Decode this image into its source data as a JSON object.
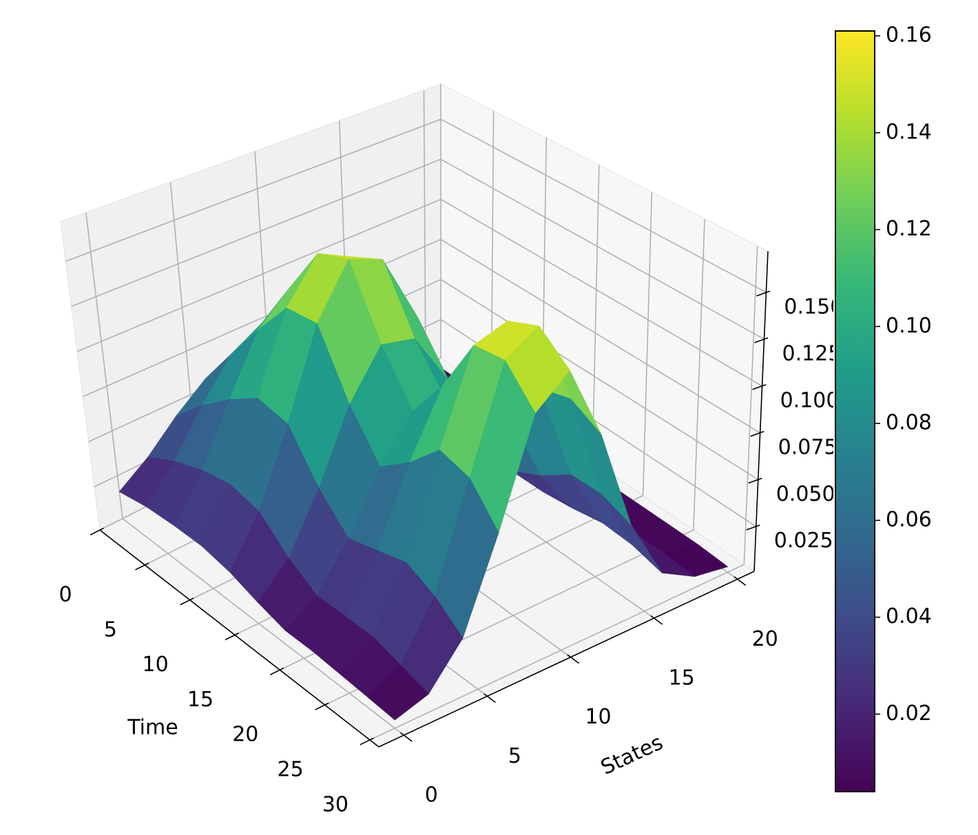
{
  "chart_data": {
    "type": "surface",
    "xlabel": "Time",
    "ylabel": "States",
    "colormap": "viridis",
    "x": [
      0,
      3,
      6,
      9,
      12,
      15,
      18,
      21,
      24,
      27,
      30
    ],
    "y": [
      0,
      2,
      4,
      6,
      8,
      10,
      12,
      14,
      16,
      18,
      20
    ],
    "z": [
      [
        0.016,
        0.027,
        0.042,
        0.055,
        0.06,
        0.055,
        0.042,
        0.027,
        0.016,
        0.009,
        0.006
      ],
      [
        0.019,
        0.036,
        0.059,
        0.08,
        0.09,
        0.083,
        0.062,
        0.039,
        0.021,
        0.011,
        0.006
      ],
      [
        0.02,
        0.042,
        0.073,
        0.104,
        0.12,
        0.111,
        0.083,
        0.05,
        0.026,
        0.012,
        0.006
      ],
      [
        0.02,
        0.045,
        0.084,
        0.126,
        0.149,
        0.14,
        0.103,
        0.061,
        0.03,
        0.013,
        0.006
      ],
      [
        0.017,
        0.041,
        0.08,
        0.127,
        0.155,
        0.148,
        0.109,
        0.063,
        0.029,
        0.012,
        0.006
      ],
      [
        0.012,
        0.027,
        0.056,
        0.093,
        0.118,
        0.114,
        0.084,
        0.047,
        0.022,
        0.009,
        0.005
      ],
      [
        0.008,
        0.018,
        0.04,
        0.07,
        0.092,
        0.091,
        0.067,
        0.037,
        0.017,
        0.008,
        0.005
      ],
      [
        0.008,
        0.018,
        0.044,
        0.082,
        0.115,
        0.116,
        0.085,
        0.045,
        0.019,
        0.008,
        0.005
      ],
      [
        0.007,
        0.018,
        0.048,
        0.098,
        0.145,
        0.151,
        0.109,
        0.056,
        0.022,
        0.008,
        0.005
      ],
      [
        0.006,
        0.014,
        0.041,
        0.093,
        0.146,
        0.157,
        0.113,
        0.056,
        0.021,
        0.008,
        0.005
      ],
      [
        0.005,
        0.01,
        0.03,
        0.075,
        0.128,
        0.143,
        0.104,
        0.05,
        0.017,
        0.007,
        0.004
      ]
    ],
    "xlim": [
      0,
      31
    ],
    "ylim": [
      -1.5,
      21
    ],
    "zlim": [
      0.001,
      0.172
    ],
    "xticks": [
      0,
      5,
      10,
      15,
      20,
      25,
      30
    ],
    "yticks": [
      0,
      5,
      10,
      15,
      20
    ],
    "zticks": [
      {
        "value": 0.025,
        "label": "0.025"
      },
      {
        "value": 0.05,
        "label": "0.050"
      },
      {
        "value": 0.075,
        "label": "0.075"
      },
      {
        "value": 0.1,
        "label": "0.100"
      },
      {
        "value": 0.125,
        "label": "0.125"
      },
      {
        "value": 0.15,
        "label": "0.150"
      }
    ],
    "clim": [
      0.004,
      0.161
    ],
    "colorbar_ticks": [
      {
        "value": 0.02,
        "label": "0.02"
      },
      {
        "value": 0.04,
        "label": "0.04"
      },
      {
        "value": 0.06,
        "label": "0.06"
      },
      {
        "value": 0.08,
        "label": "0.08"
      },
      {
        "value": 0.1,
        "label": "0.10"
      },
      {
        "value": 0.12,
        "label": "0.12"
      },
      {
        "value": 0.14,
        "label": "0.14"
      },
      {
        "value": 0.16,
        "label": "0.16"
      }
    ],
    "grid": true
  }
}
